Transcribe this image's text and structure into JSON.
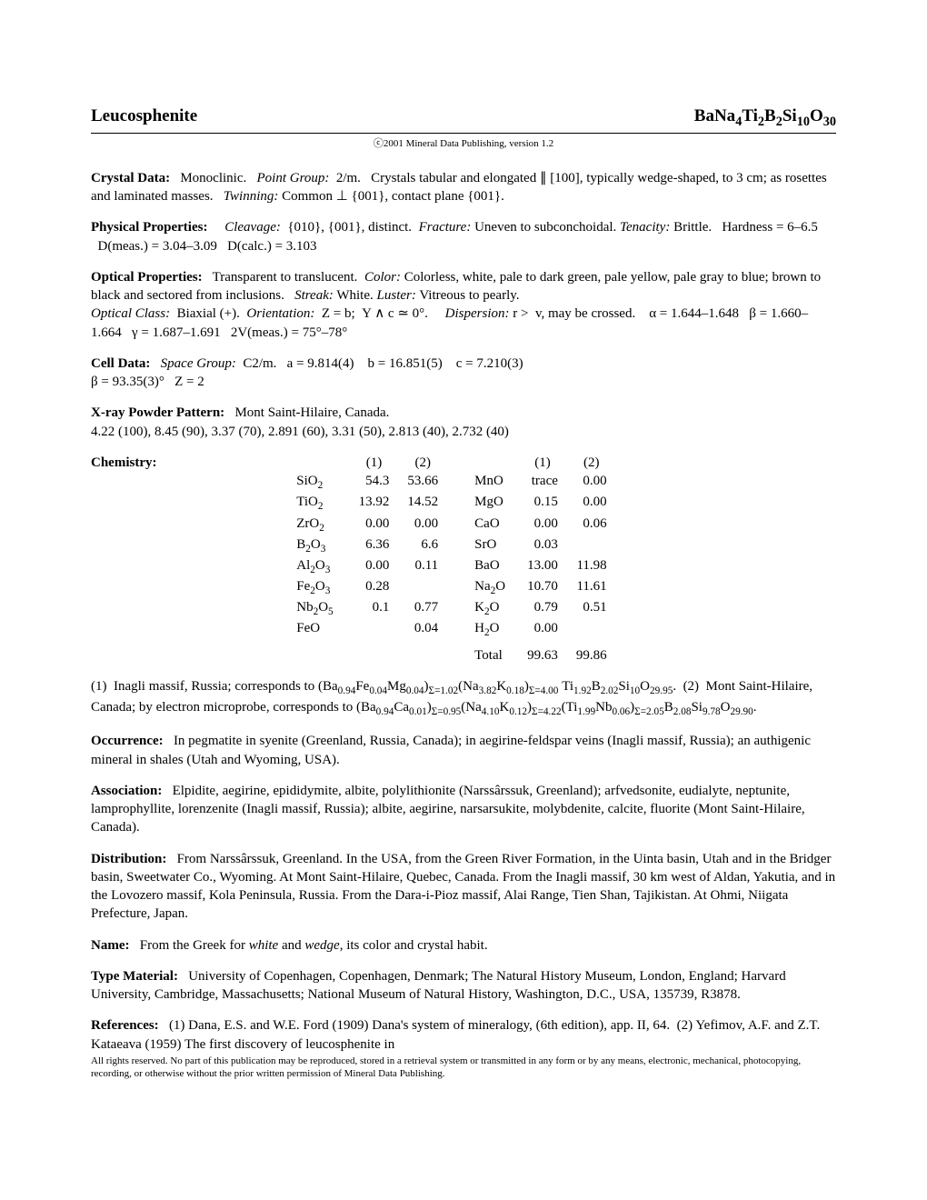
{
  "title": {
    "mineral": "Leucosphenite",
    "formula_html": "BaNa<sub>4</sub>Ti<sub>2</sub>B<sub>2</sub>Si<sub>10</sub>O<sub>30</sub>"
  },
  "copyright": "ⓒ2001 Mineral Data Publishing, version 1.2",
  "crystal_data": {
    "label": "Crystal Data:",
    "body_html": "Monoclinic. &nbsp;&nbsp;<span class=\"ital\">Point Group:</span> &nbsp;2/m. &nbsp;&nbsp;Crystals tabular and elongated ∥ [100], typically wedge-shaped, to 3 cm; as rosettes and laminated masses. &nbsp;&nbsp;<span class=\"ital\">Twinning:</span> Common ⊥ {001}, contact plane {001}."
  },
  "physical": {
    "label": "Physical Properties:",
    "body_html": "&nbsp;&nbsp;<span class=\"ital\">Cleavage:</span> &nbsp;{010}, {001}, distinct. &nbsp;<span class=\"ital\">Fracture:</span> Uneven to subconchoidal. <span class=\"ital\">Tenacity:</span> Brittle. &nbsp;&nbsp;Hardness = 6–6.5 &nbsp;&nbsp;D(meas.) = 3.04–3.09 &nbsp;&nbsp;D(calc.) = 3.103"
  },
  "optical": {
    "label": "Optical Properties:",
    "body_html": "Transparent to translucent. &nbsp;<span class=\"ital\">Color:</span> Colorless, white, pale to dark green, pale yellow, pale gray to blue; brown to black and sectored from inclusions. &nbsp;&nbsp;<span class=\"ital\">Streak:</span> White. <span class=\"ital\">Luster:</span> Vitreous to pearly.<br><span class=\"ital\">Optical Class:</span> &nbsp;Biaxial (+). &nbsp;<span class=\"ital\">Orientation:</span> &nbsp;Z = b; &nbsp;Y ∧ c ≃ 0°. &nbsp;&nbsp;&nbsp;&nbsp;<span class=\"ital\">Dispersion:</span> r &gt; &nbsp;v, may be crossed. &nbsp;&nbsp;&nbsp;α = 1.644–1.648 &nbsp;&nbsp;β = 1.660–1.664 &nbsp;&nbsp;γ = 1.687–1.691 &nbsp;&nbsp;2V(meas.) = 75°–78°"
  },
  "cell": {
    "label": "Cell Data:",
    "body_html": "<span class=\"ital\">Space Group:</span> &nbsp;C2/m. &nbsp;&nbsp;a = 9.814(4) &nbsp;&nbsp;&nbsp;b = 16.851(5) &nbsp;&nbsp;&nbsp;c = 7.210(3)<br>β = 93.35(3)° &nbsp;&nbsp;Z = 2"
  },
  "xray": {
    "label": "X-ray Powder Pattern:",
    "body_html": "Mont Saint-Hilaire, Canada.<br>4.22 (100), 8.45 (90), 3.37 (70), 2.891 (60), 3.31 (50), 2.813 (40), 2.732 (40)"
  },
  "chemistry": {
    "label": "Chemistry:",
    "columns": [
      "(1)",
      "(2)",
      "(1)",
      "(2)"
    ],
    "rows": [
      {
        "c1_html": "SiO<sub>2</sub>",
        "v1": "54.3",
        "v2": "53.66",
        "c2_html": "MnO",
        "v3": "trace",
        "v4": "0.00"
      },
      {
        "c1_html": "TiO<sub>2</sub>",
        "v1": "13.92",
        "v2": "14.52",
        "c2_html": "MgO",
        "v3": "0.15",
        "v4": "0.00"
      },
      {
        "c1_html": "ZrO<sub>2</sub>",
        "v1": "0.00",
        "v2": "0.00",
        "c2_html": "CaO",
        "v3": "0.00",
        "v4": "0.06"
      },
      {
        "c1_html": "B<sub>2</sub>O<sub>3</sub>",
        "v1": "6.36",
        "v2": "6.6",
        "c2_html": "SrO",
        "v3": "0.03",
        "v4": ""
      },
      {
        "c1_html": "Al<sub>2</sub>O<sub>3</sub>",
        "v1": "0.00",
        "v2": "0.11",
        "c2_html": "BaO",
        "v3": "13.00",
        "v4": "11.98"
      },
      {
        "c1_html": "Fe<sub>2</sub>O<sub>3</sub>",
        "v1": "0.28",
        "v2": "",
        "c2_html": "Na<sub>2</sub>O",
        "v3": "10.70",
        "v4": "11.61"
      },
      {
        "c1_html": "Nb<sub>2</sub>O<sub>5</sub>",
        "v1": "0.1",
        "v2": "0.77",
        "c2_html": "K<sub>2</sub>O",
        "v3": "0.79",
        "v4": "0.51"
      },
      {
        "c1_html": "FeO",
        "v1": "",
        "v2": "0.04",
        "c2_html": "H<sub>2</sub>O",
        "v3": "0.00",
        "v4": ""
      }
    ],
    "total_label": "Total",
    "total1": "99.63",
    "total2": "99.86",
    "analysis_html": "(1) &nbsp;Inagli massif, Russia; corresponds to (Ba<sub>0.94</sub>Fe<sub>0.04</sub>Mg<sub>0.04</sub>)<sub>Σ=1.02</sub>(Na<sub>3.82</sub>K<sub>0.18</sub>)<sub>Σ=4.00</sub> Ti<sub>1.92</sub>B<sub>2.02</sub>Si<sub>10</sub>O<sub>29.95</sub>. &nbsp;(2) &nbsp;Mont Saint-Hilaire, Canada; by electron microprobe, corresponds to (Ba<sub>0.94</sub>Ca<sub>0.01</sub>)<sub>Σ=0.95</sub>(Na<sub>4.10</sub>K<sub>0.12</sub>)<sub>Σ=4.22</sub>(Ti<sub>1.99</sub>Nb<sub>0.06</sub>)<sub>Σ=2.05</sub>B<sub>2.08</sub>Si<sub>9.78</sub>O<sub>29.90</sub>."
  },
  "occurrence": {
    "label": "Occurrence:",
    "body": "In pegmatite in syenite (Greenland, Russia, Canada); in aegirine-feldspar veins (Inagli massif, Russia); an authigenic mineral in shales (Utah and Wyoming, USA)."
  },
  "association": {
    "label": "Association:",
    "body": "Elpidite, aegirine, epididymite, albite, polylithionite (Narssârssuk, Greenland); arfvedsonite, eudialyte, neptunite, lamprophyllite, lorenzenite (Inagli massif, Russia); albite, aegirine, narsarsukite, molybdenite, calcite, fluorite (Mont Saint-Hilaire, Canada)."
  },
  "distribution": {
    "label": "Distribution:",
    "body": "From Narssârssuk, Greenland. In the USA, from the Green River Formation, in the Uinta basin, Utah and in the Bridger basin, Sweetwater Co., Wyoming. At Mont Saint-Hilaire, Quebec, Canada. From the Inagli massif, 30 km west of Aldan, Yakutia, and in the Lovozero massif, Kola Peninsula, Russia. From the Dara-i-Pioz massif, Alai Range, Tien Shan, Tajikistan. At Ohmi, Niigata Prefecture, Japan."
  },
  "name": {
    "label": "Name:",
    "body_html": "From the Greek for <span class=\"ital\">white</span> and <span class=\"ital\">wedge</span>, its color and crystal habit."
  },
  "type_material": {
    "label": "Type Material:",
    "body": "University of Copenhagen, Copenhagen, Denmark; The Natural History Museum, London, England; Harvard University, Cambridge, Massachusetts; National Museum of Natural History, Washington, D.C., USA, 135739, R3878."
  },
  "references": {
    "label": "References:",
    "body_html": "(1) Dana, E.S. and W.E. Ford (1909) Dana's system of mineralogy, (6th edition), app. II, 64. &nbsp;(2) Yefimov, A.F. and Z.T. Kataeava (1959) The first discovery of leucosphenite in"
  },
  "footer": "All rights reserved.  No part of this publication may be reproduced, stored in a retrieval system or transmitted in any form or by any means, electronic, mechanical, photocopying, recording, or otherwise without the prior written permission of Mineral Data Publishing."
}
